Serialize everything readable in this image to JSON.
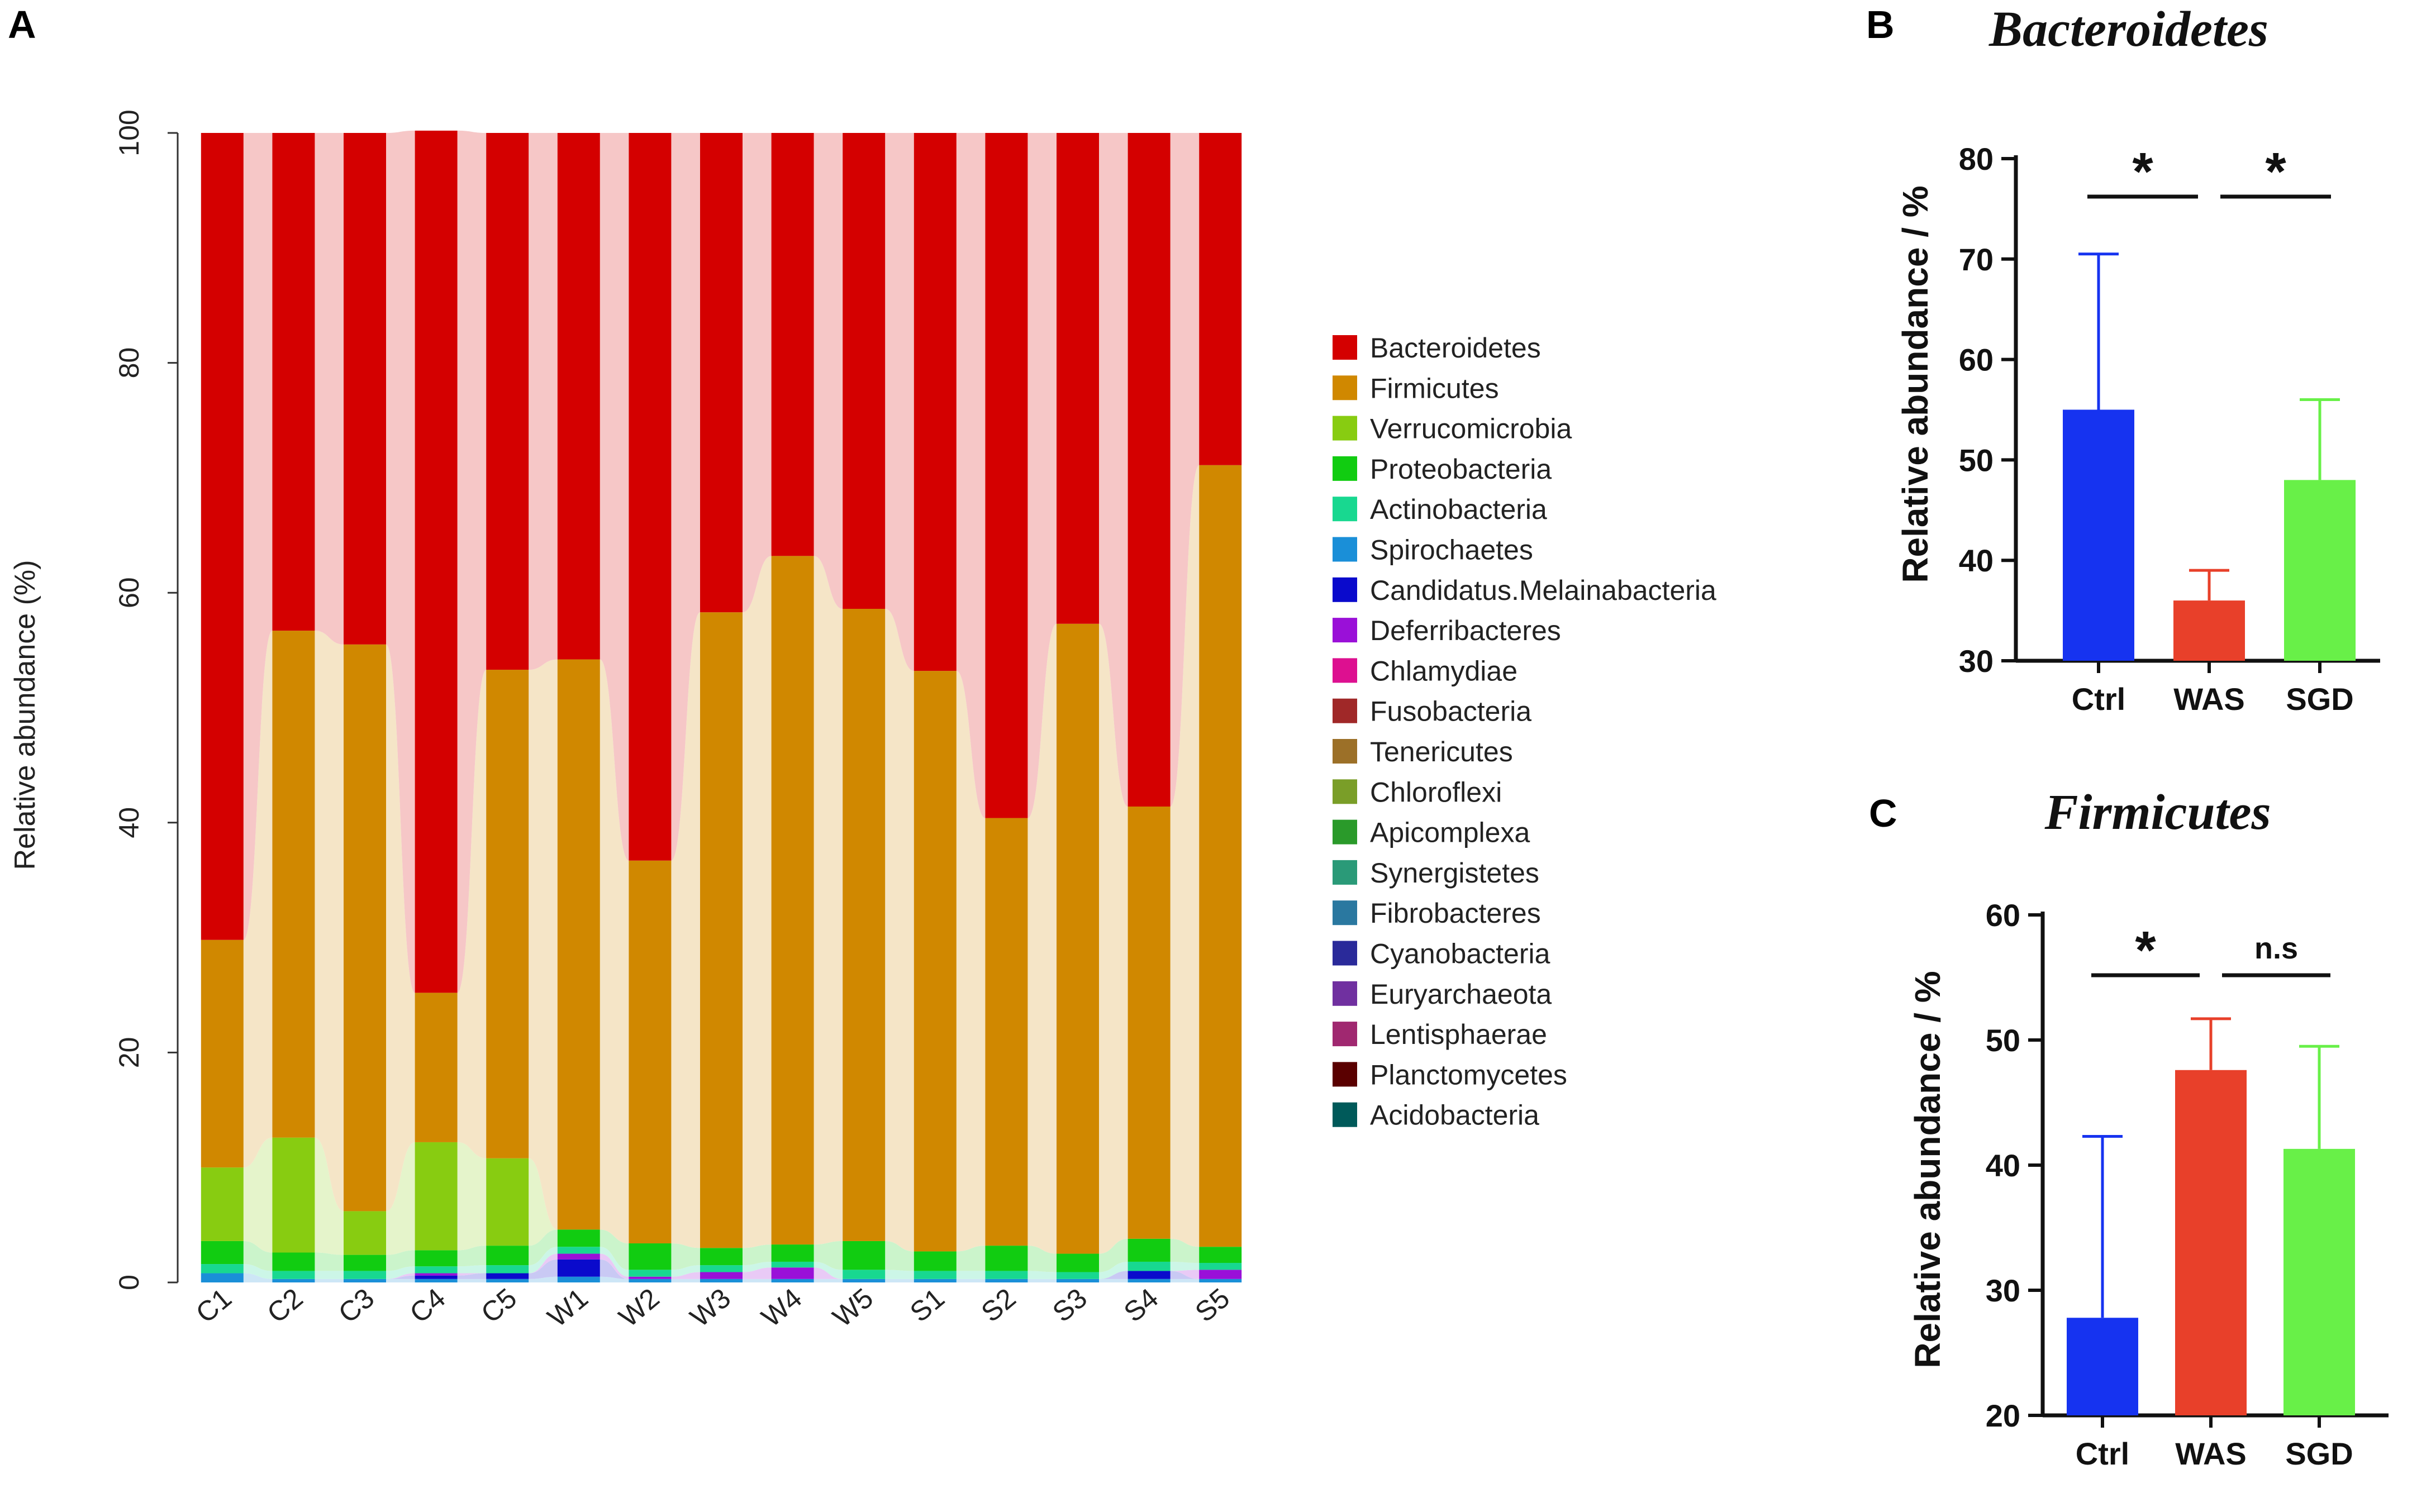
{
  "panels": {
    "a": "A",
    "b": "B",
    "c": "C"
  },
  "chart_data": [
    {
      "type": "bar",
      "subtype": "stacked-100",
      "panel": "A",
      "title": "",
      "xlabel": "",
      "ylabel": "Relative abundance (%)",
      "ylim": [
        0,
        100
      ],
      "yticks": [
        0,
        20,
        40,
        60,
        80,
        100
      ],
      "categories": [
        "C1",
        "C2",
        "C3",
        "C4",
        "C5",
        "W1",
        "W2",
        "W3",
        "W4",
        "W5",
        "S1",
        "S2",
        "S3",
        "S4",
        "S5"
      ],
      "legend_position": "right",
      "series": [
        {
          "name": "Spirochaetes",
          "color": "#1a8fd8",
          "values": [
            0.8,
            0.3,
            0.3,
            0.3,
            0.3,
            0.5,
            0.3,
            0.3,
            0.3,
            0.3,
            0.3,
            0.3,
            0.3,
            0.3,
            0.3
          ]
        },
        {
          "name": "Candidatus.Melainabacteria",
          "color": "#0a0acc",
          "values": [
            0,
            0,
            0,
            0.3,
            0.5,
            1.5,
            0,
            0,
            0,
            0,
            0,
            0,
            0,
            0.7,
            0
          ]
        },
        {
          "name": "Deferribacteres",
          "color": "#9a10d8",
          "values": [
            0,
            0,
            0,
            0.2,
            0,
            0.5,
            0.2,
            0.6,
            1.0,
            0,
            0,
            0,
            0,
            0,
            0.8
          ]
        },
        {
          "name": "Actinobacteria",
          "color": "#18d890",
          "values": [
            0.8,
            0.7,
            0.7,
            0.6,
            0.7,
            0.6,
            0.6,
            0.6,
            0.5,
            0.8,
            0.7,
            0.7,
            0.6,
            0.8,
            0.6
          ]
        },
        {
          "name": "Proteobacteria",
          "color": "#11cc11",
          "values": [
            2.0,
            1.6,
            1.4,
            1.4,
            1.7,
            1.5,
            2.3,
            1.5,
            1.5,
            2.5,
            1.7,
            2.2,
            1.6,
            2.0,
            1.4
          ]
        },
        {
          "name": "Verrucomicrobia",
          "color": "#88cc11",
          "values": [
            6.4,
            10.0,
            3.8,
            9.4,
            7.6,
            0,
            0,
            0,
            0,
            0,
            0,
            0,
            0,
            0,
            0
          ]
        },
        {
          "name": "Firmicutes",
          "color": "#d08800",
          "values": [
            19.8,
            44.1,
            49.3,
            13.0,
            42.5,
            49.6,
            33.3,
            55.3,
            59.9,
            55.0,
            50.5,
            37.2,
            54.8,
            37.6,
            68.0
          ]
        },
        {
          "name": "Bacteroidetes",
          "color": "#d40000",
          "values": [
            70.2,
            43.3,
            44.5,
            75.0,
            46.7,
            45.8,
            63.3,
            41.7,
            36.8,
            41.4,
            46.8,
            59.6,
            42.7,
            58.6,
            28.9
          ]
        }
      ],
      "legend": [
        {
          "name": "Bacteroidetes",
          "color": "#d40000"
        },
        {
          "name": "Firmicutes",
          "color": "#d08800"
        },
        {
          "name": "Verrucomicrobia",
          "color": "#88cc11"
        },
        {
          "name": "Proteobacteria",
          "color": "#11cc11"
        },
        {
          "name": "Actinobacteria",
          "color": "#18d890"
        },
        {
          "name": "Spirochaetes",
          "color": "#1a8fd8"
        },
        {
          "name": "Candidatus.Melainabacteria",
          "color": "#0a0acc"
        },
        {
          "name": "Deferribacteres",
          "color": "#9a10d8"
        },
        {
          "name": "Chlamydiae",
          "color": "#dd1090"
        },
        {
          "name": "Fusobacteria",
          "color": "#a02828"
        },
        {
          "name": "Tenericutes",
          "color": "#9c7028"
        },
        {
          "name": "Chloroflexi",
          "color": "#7a9e28"
        },
        {
          "name": "Apicomplexa",
          "color": "#2a9a2a"
        },
        {
          "name": "Synergistetes",
          "color": "#2a9a78"
        },
        {
          "name": "Fibrobacteres",
          "color": "#2a78a0"
        },
        {
          "name": "Cyanobacteria",
          "color": "#2a2a9a"
        },
        {
          "name": "Euryarchaeota",
          "color": "#7030a0"
        },
        {
          "name": "Lentisphaerae",
          "color": "#a02870"
        },
        {
          "name": "Planctomycetes",
          "color": "#5a0000"
        },
        {
          "name": "Acidobacteria",
          "color": "#005a5a"
        }
      ]
    },
    {
      "type": "bar",
      "panel": "B",
      "title": "Bacteroidetes",
      "xlabel": "",
      "ylabel": "Relative abundance / %",
      "ylim": [
        30,
        80
      ],
      "yticks": [
        30,
        40,
        50,
        60,
        70,
        80
      ],
      "categories": [
        "Ctrl",
        "WAS",
        "SGD"
      ],
      "values": [
        55,
        36,
        48
      ],
      "errors": [
        15.5,
        3,
        8
      ],
      "colors": [
        "#1633f0",
        "#e8402a",
        "#68f048"
      ],
      "significance": [
        {
          "from": "Ctrl",
          "to": "WAS",
          "label": "*"
        },
        {
          "from": "WAS",
          "to": "SGD",
          "label": "*"
        }
      ]
    },
    {
      "type": "bar",
      "panel": "C",
      "title": "Firmicutes",
      "xlabel": "",
      "ylabel": "Relative abundance / %",
      "ylim": [
        20,
        60
      ],
      "yticks": [
        20,
        30,
        40,
        50,
        60
      ],
      "categories": [
        "Ctrl",
        "WAS",
        "SGD"
      ],
      "values": [
        27.8,
        47.6,
        41.3
      ],
      "errors": [
        14.5,
        4.1,
        8.2
      ],
      "colors": [
        "#1633f0",
        "#e8402a",
        "#68f048"
      ],
      "significance": [
        {
          "from": "Ctrl",
          "to": "WAS",
          "label": "*"
        },
        {
          "from": "WAS",
          "to": "SGD",
          "label": "n.s"
        }
      ]
    }
  ]
}
